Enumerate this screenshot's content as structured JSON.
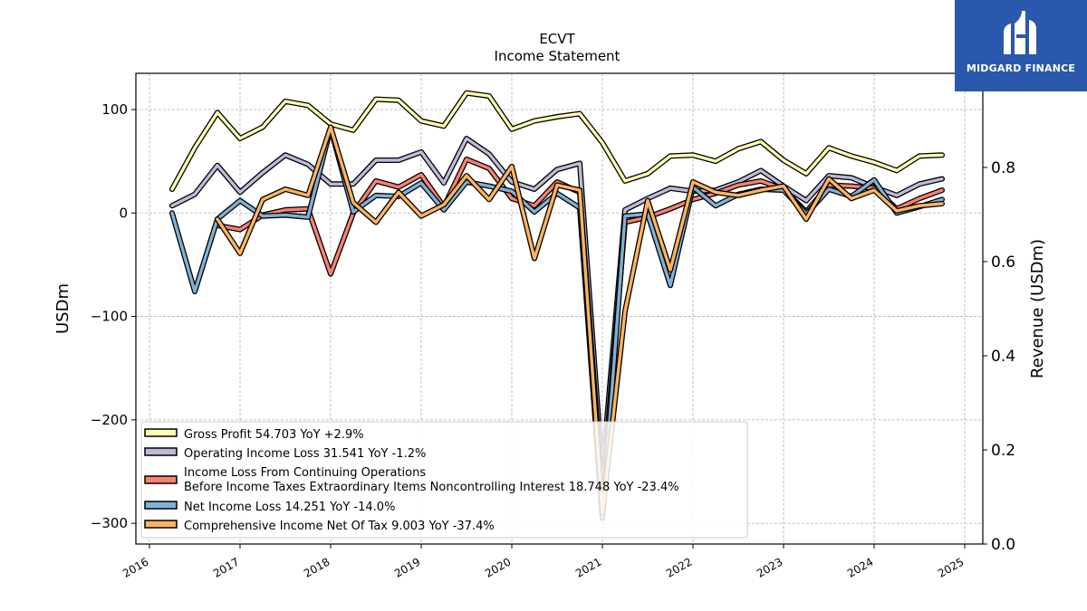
{
  "chart_data": {
    "type": "line",
    "title": "ECVT",
    "subtitle": "Income Statement",
    "ylabel": "USDm",
    "ylabel_right": "Revenue (USDm)",
    "ylim": [
      -320,
      135
    ],
    "ylim_right": [
      0,
      1.0
    ],
    "xlim": [
      2015.85,
      2025.2
    ],
    "yticks": [
      -300,
      -200,
      -100,
      0,
      100
    ],
    "yticks_right": [
      0.0,
      0.2,
      0.4,
      0.6,
      0.8
    ],
    "xticks": [
      "2016",
      "2017",
      "2018",
      "2019",
      "2020",
      "2021",
      "2022",
      "2023",
      "2024",
      "2025"
    ],
    "grid": true,
    "legend_position": "lower-left",
    "series": [
      {
        "name": "Gross Profit",
        "legend": "Gross Profit  54.703 YoY +2.9%",
        "color": "#ffffb3",
        "x": [
          2016.25,
          2016.5,
          2016.75,
          2017.0,
          2017.25,
          2017.5,
          2017.75,
          2018.0,
          2018.25,
          2018.5,
          2018.75,
          2019.0,
          2019.25,
          2019.5,
          2019.75,
          2020.0,
          2020.25,
          2020.5,
          2020.75,
          2021.0,
          2021.25,
          2021.5,
          2021.75,
          2022.0,
          2022.25,
          2022.5,
          2022.75,
          2023.0,
          2023.25,
          2023.5,
          2023.75,
          2024.0,
          2024.25,
          2024.5,
          2024.75
        ],
        "y": [
          23,
          63,
          97,
          72,
          83,
          108,
          104,
          86,
          80,
          110,
          109,
          89,
          84,
          116,
          113,
          81,
          89,
          93,
          96,
          68,
          31,
          38,
          55,
          56,
          50,
          62,
          69,
          51,
          38,
          63,
          55,
          49,
          41,
          55,
          56
        ]
      },
      {
        "name": "Operating Income Loss",
        "legend": "Operating Income Loss  31.541 YoY -1.2%",
        "color": "#bebada",
        "x": [
          2016.25,
          2016.5,
          2016.75,
          2017.0,
          2017.25,
          2017.5,
          2017.75,
          2018.0,
          2018.25,
          2018.5,
          2018.75,
          2019.0,
          2019.25,
          2019.5,
          2019.75,
          2020.0,
          2020.25,
          2020.5,
          2020.75,
          2021.0,
          2021.25,
          2021.5,
          2021.75,
          2022.0,
          2022.25,
          2022.5,
          2022.75,
          2023.0,
          2023.25,
          2023.5,
          2023.75,
          2024.0,
          2024.25,
          2024.5,
          2024.75
        ],
        "y": [
          7,
          18,
          46,
          20,
          39,
          56,
          47,
          28,
          28,
          51,
          51,
          59,
          29,
          72,
          57,
          30,
          23,
          42,
          48,
          -250,
          3,
          14,
          24,
          21,
          22,
          30,
          41,
          26,
          12,
          36,
          34,
          25,
          17,
          28,
          33
        ]
      },
      {
        "name": "Income Loss From Continuing Operations Before Income Taxes Extraordinary Items Noncontrolling Interest",
        "legend_lines": [
          "Income Loss From Continuing Operations",
          "Before Income Taxes Extraordinary Items Noncontrolling Interest  18.748 YoY -23.4%"
        ],
        "color": "#fb8072",
        "x": [
          2016.75,
          2017.0,
          2017.25,
          2017.5,
          2017.75,
          2018.0,
          2018.25,
          2018.5,
          2018.75,
          2019.0,
          2019.25,
          2019.5,
          2019.75,
          2020.0,
          2020.25,
          2020.5,
          2020.75,
          2021.0,
          2021.25,
          2021.5,
          2021.75,
          2022.0,
          2022.25,
          2022.5,
          2022.75,
          2023.0,
          2023.25,
          2023.5,
          2023.75,
          2024.0,
          2024.25,
          2024.5,
          2024.75
        ],
        "y": [
          -12,
          -16,
          -2,
          3,
          4,
          -59,
          0,
          31,
          25,
          37,
          6,
          52,
          43,
          14,
          7,
          30,
          20,
          -270,
          -9,
          -4,
          4,
          13,
          19,
          27,
          31,
          23,
          1,
          27,
          26,
          24,
          4,
          14,
          22
        ]
      },
      {
        "name": "Net Income Loss",
        "legend": "Net Income Loss  14.251 YoY -14.0%",
        "color": "#80b1d3",
        "x": [
          2016.25,
          2016.5,
          2016.75,
          2017.0,
          2017.25,
          2017.5,
          2017.75,
          2018.0,
          2018.25,
          2018.5,
          2018.75,
          2019.0,
          2019.25,
          2019.5,
          2019.75,
          2020.0,
          2020.25,
          2020.5,
          2020.75,
          2021.0,
          2021.25,
          2021.5,
          2021.75,
          2022.0,
          2022.25,
          2022.5,
          2022.75,
          2023.0,
          2023.25,
          2023.5,
          2023.75,
          2024.0,
          2024.25,
          2024.5,
          2024.75
        ],
        "y": [
          0,
          -76,
          -6,
          12,
          -3,
          -2,
          -4,
          82,
          1,
          17,
          16,
          29,
          3,
          30,
          26,
          21,
          1,
          19,
          5,
          -295,
          -3,
          -1,
          -70,
          25,
          7,
          18,
          23,
          22,
          -1,
          23,
          16,
          32,
          0,
          6,
          13
        ]
      },
      {
        "name": "Comprehensive Income Net Of Tax",
        "legend": "Comprehensive Income Net Of Tax  9.003 YoY -37.4%",
        "color": "#fdb462",
        "x": [
          2016.75,
          2017.0,
          2017.25,
          2017.5,
          2017.75,
          2018.0,
          2018.25,
          2018.5,
          2018.75,
          2019.0,
          2019.25,
          2019.5,
          2019.75,
          2020.0,
          2020.25,
          2020.5,
          2020.75,
          2021.0,
          2021.25,
          2021.5,
          2021.75,
          2022.0,
          2022.25,
          2022.5,
          2022.75,
          2023.0,
          2023.25,
          2023.5,
          2023.75,
          2024.0,
          2024.25,
          2024.5,
          2024.75
        ],
        "y": [
          -6,
          -39,
          13,
          23,
          17,
          83,
          10,
          -9,
          20,
          -3,
          8,
          36,
          13,
          45,
          -44,
          27,
          22,
          -290,
          -95,
          12,
          -55,
          30,
          20,
          17,
          22,
          26,
          -6,
          33,
          14,
          22,
          2,
          7,
          9
        ]
      }
    ]
  },
  "logo": {
    "text": "MIDGARD FINANCE",
    "color": "#2a58ad"
  }
}
